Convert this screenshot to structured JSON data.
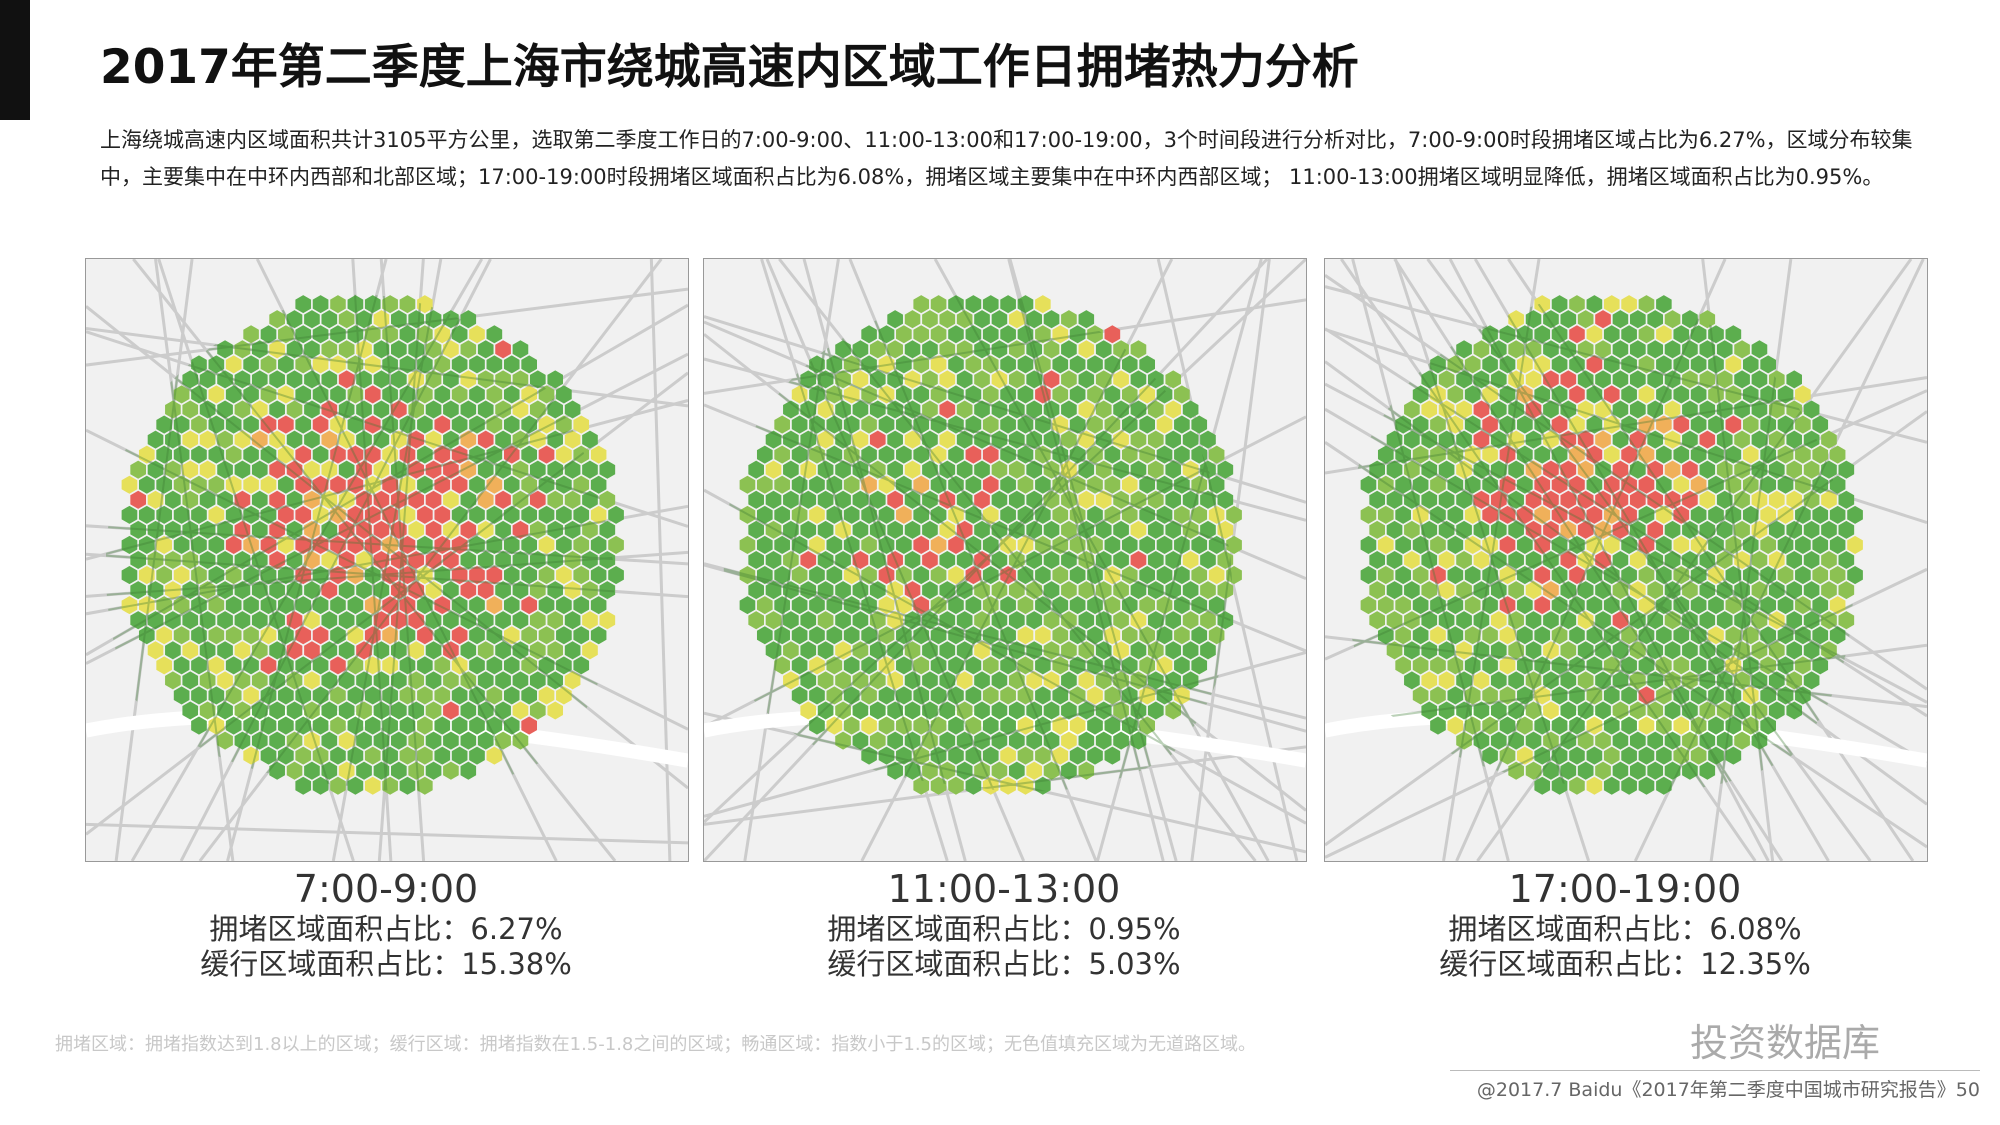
{
  "header": {
    "title": "2017年第二季度上海市绕城高速内区域工作日拥堵热力分析",
    "description": "上海绕城高速内区域面积共计3105平方公里，选取第二季度工作日的7:00-9:00、11:00-13:00和17:00-19:00，3个时间段进行分析对比，7:00-9:00时段拥堵区域占比为6.27%，区域分布较集中，主要集中在中环内西部和北部区域；17:00-19:00时段拥堵区域面积占比为6.08%，拥堵区域主要集中在中环内西部区域； 11:00-13:00拥堵区域明显降低，拥堵区域面积占比为0.95%。"
  },
  "maps": [
    {
      "time": "7:00-9:00",
      "congestion": "拥堵区域面积占比：6.27%",
      "slow": "缓行区域面积占比：15.38%"
    },
    {
      "time": "11:00-13:00",
      "congestion": "拥堵区域面积占比：0.95%",
      "slow": "缓行区域面积占比：5.03%"
    },
    {
      "time": "17:00-19:00",
      "congestion": "拥堵区域面积占比：6.08%",
      "slow": "缓行区域面积占比：12.35%"
    }
  ],
  "footer": {
    "note": "拥堵区域：拥堵指数达到1.8以上的区域；缓行区域：拥堵指数在1.5-1.8之间的区域；畅通区域：指数小于1.5的区域；无色值填充区域为无道路区域。",
    "watermark": "投资数据库",
    "source": "@2017.7 Baidu《2017年第二季度中国城市研究报告》50"
  }
}
